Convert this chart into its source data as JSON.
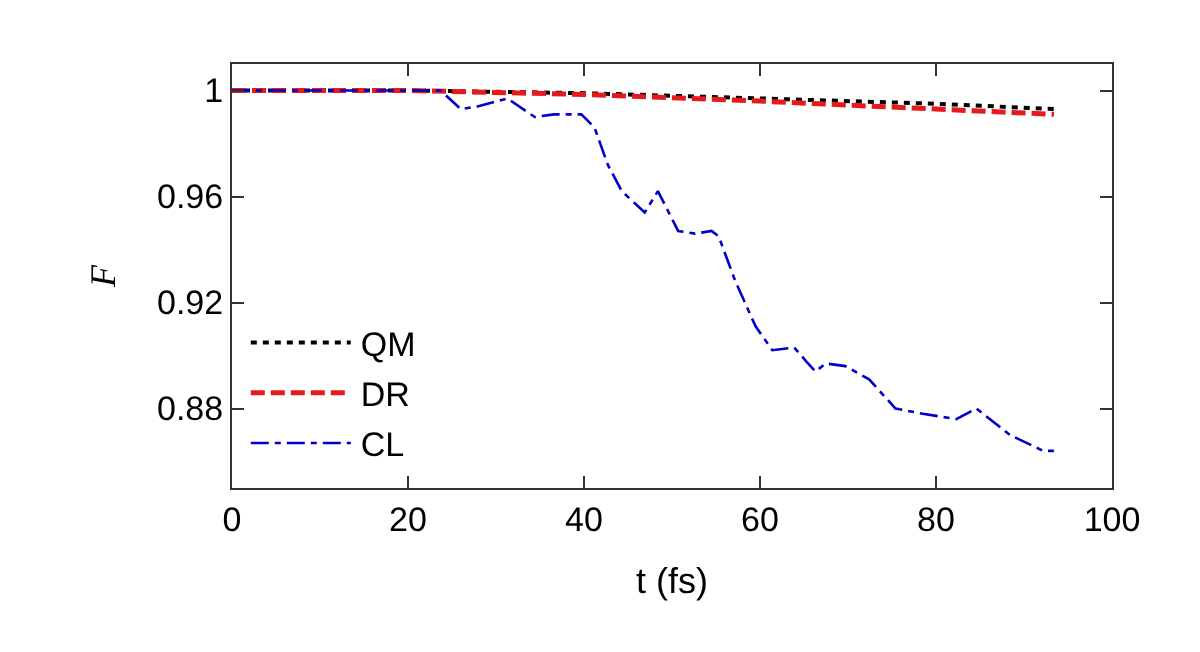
{
  "chart_data": {
    "type": "line",
    "xlabel": "t (fs)",
    "ylabel": "F",
    "xlim": [
      0,
      100
    ],
    "xticks": [
      0,
      20,
      40,
      60,
      80,
      100
    ],
    "ylim": [
      0.85,
      1.01
    ],
    "yticks": [
      0.88,
      0.92,
      0.96,
      1
    ],
    "legend": "bottom left",
    "series": [
      {
        "name": "QM",
        "color": "#000000",
        "line_style": "dotted",
        "x": [
          0,
          20,
          40,
          60,
          80,
          93.4
        ],
        "values": [
          1,
          1,
          0.999,
          0.997,
          0.995,
          0.993
        ]
      },
      {
        "name": "DR",
        "color": "#e41a1c",
        "line_style": "dashed",
        "x": [
          0,
          20,
          40,
          60,
          80,
          93.4
        ],
        "values": [
          1,
          1,
          0.9985,
          0.996,
          0.993,
          0.991
        ]
      },
      {
        "name": "CL",
        "color": "#0000c8",
        "line_style": "dashdot",
        "x": [
          0,
          23.7,
          26,
          27.9,
          31.3,
          34.4,
          36.6,
          39.7,
          41.2,
          42.7,
          44.3,
          46.9,
          48.4,
          50.7,
          52.6,
          54.5,
          55.3,
          57.2,
          59.5,
          61.4,
          63.9,
          65.2,
          66.3,
          67.5,
          69.7,
          72.4,
          75.4,
          78.5,
          82.3,
          84.6,
          88.4,
          92.2,
          93.4
        ],
        "values": [
          1,
          1,
          0.993,
          0.994,
          0.997,
          0.99,
          0.991,
          0.991,
          0.986,
          0.972,
          0.962,
          0.954,
          0.962,
          0.947,
          0.946,
          0.947,
          0.945,
          0.928,
          0.911,
          0.902,
          0.903,
          0.898,
          0.894,
          0.897,
          0.896,
          0.891,
          0.88,
          0.878,
          0.876,
          0.88,
          0.87,
          0.864,
          0.864
        ]
      }
    ]
  }
}
